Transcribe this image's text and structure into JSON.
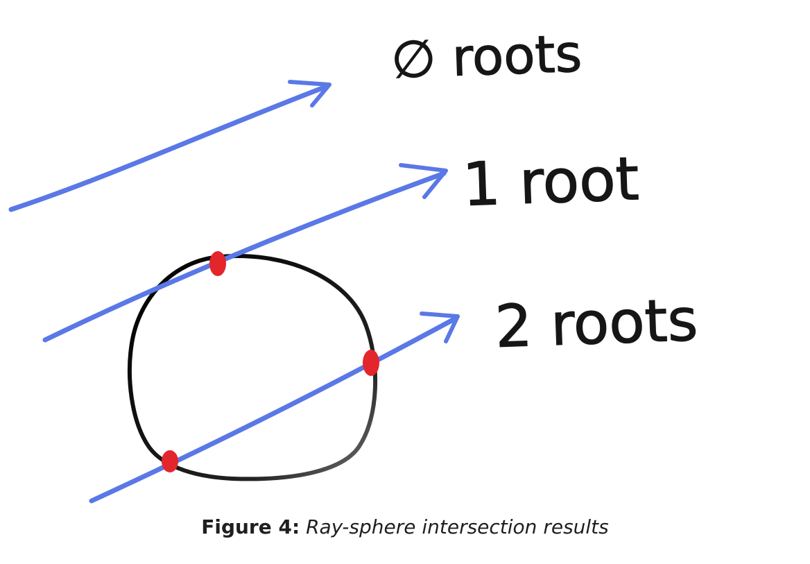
{
  "diagram": {
    "labels": {
      "zero_roots": "∅ roots",
      "one_root": "1 root",
      "two_roots": "2 roots"
    },
    "colors": {
      "ray": "#5a78e6",
      "sphere": "#111111",
      "intersection": "#e2262b",
      "ink": "#161616"
    }
  },
  "caption": {
    "label": "Figure 4:",
    "text": "Ray-sphere intersection results"
  }
}
